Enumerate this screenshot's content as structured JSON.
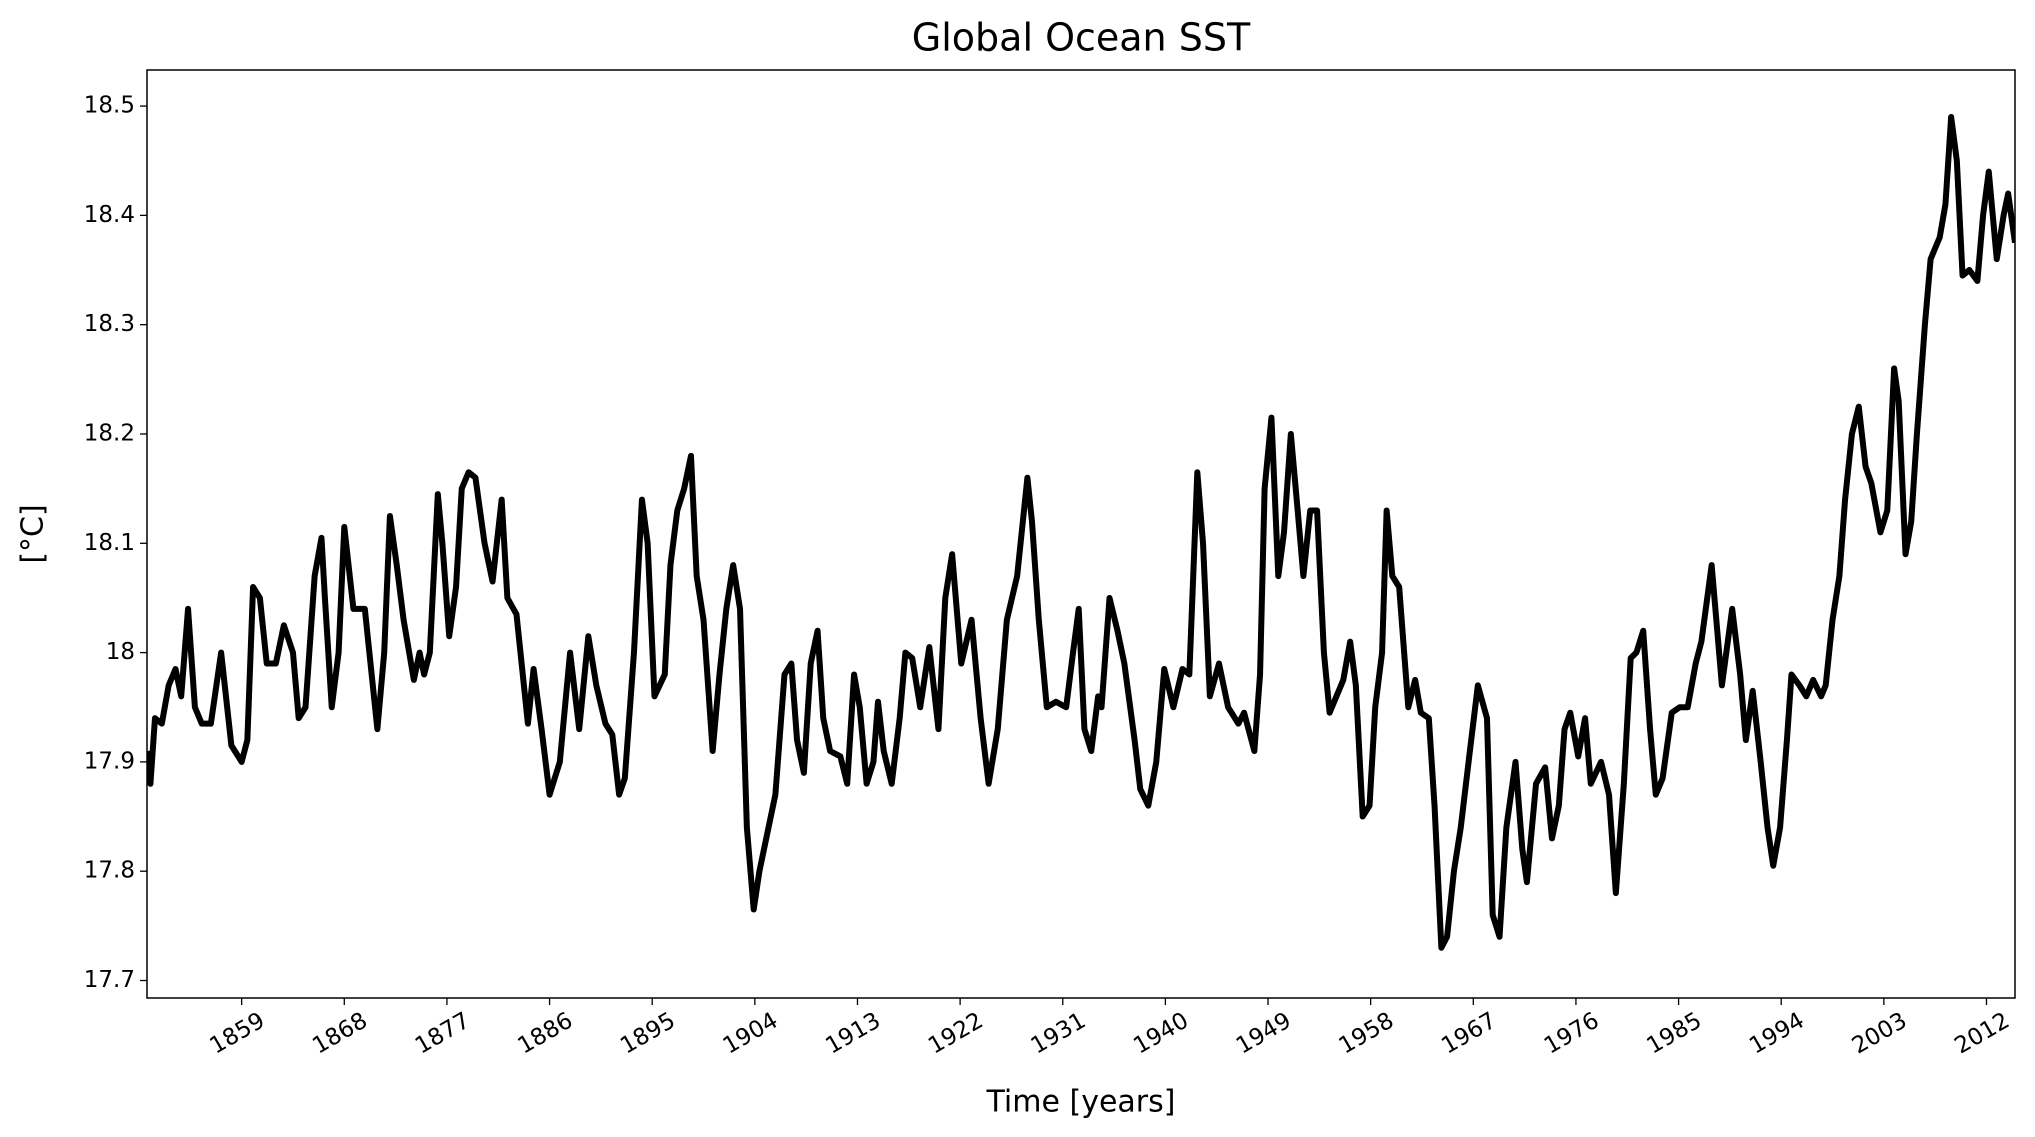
{
  "chart_data": {
    "type": "line",
    "title": "Global Ocean SST",
    "xlabel": "Time [years]",
    "ylabel": "[°C]",
    "color": "#000000",
    "x": [
      1850.7,
      1851.0,
      1851.4,
      1852.0,
      1852.6,
      1853.2,
      1853.7,
      1854.3,
      1854.9,
      1855.5,
      1856.3,
      1857.2,
      1858.1,
      1859.0,
      1859.5,
      1860.0,
      1860.6,
      1861.2,
      1862.0,
      1862.7,
      1863.5,
      1864.0,
      1864.6,
      1865.4,
      1866.0,
      1866.3,
      1866.9,
      1867.5,
      1868.0,
      1868.8,
      1869.8,
      1870.3,
      1870.9,
      1871.5,
      1872.0,
      1872.6,
      1873.2,
      1874.1,
      1874.6,
      1875.0,
      1875.5,
      1876.2,
      1876.6,
      1877.2,
      1877.8,
      1878.3,
      1878.9,
      1879.5,
      1880.3,
      1881.0,
      1881.8,
      1882.3,
      1883.1,
      1884.1,
      1884.6,
      1885.3,
      1886.0,
      1886.9,
      1887.8,
      1888.6,
      1889.4,
      1890.1,
      1890.9,
      1891.5,
      1892.1,
      1892.6,
      1893.4,
      1894.1,
      1894.6,
      1895.2,
      1896.1,
      1896.6,
      1897.2,
      1897.8,
      1898.4,
      1898.9,
      1899.5,
      1900.3,
      1900.9,
      1901.5,
      1902.1,
      1902.7,
      1903.3,
      1903.9,
      1904.4,
      1905.0,
      1905.8,
      1906.6,
      1907.2,
      1907.7,
      1908.3,
      1908.9,
      1909.5,
      1910.0,
      1910.6,
      1911.5,
      1912.1,
      1912.7,
      1913.2,
      1913.8,
      1914.4,
      1914.8,
      1915.3,
      1916.0,
      1916.7,
      1917.2,
      1917.8,
      1918.5,
      1919.3,
      1920.1,
      1920.7,
      1921.3,
      1922.1,
      1923.0,
      1923.8,
      1924.5,
      1925.3,
      1926.1,
      1927.0,
      1927.9,
      1928.3,
      1928.9,
      1929.6,
      1930.4,
      1931.3,
      1931.9,
      1932.4,
      1932.9,
      1933.5,
      1934.1,
      1934.4,
      1935.1,
      1935.8,
      1936.4,
      1937.3,
      1937.8,
      1938.5,
      1939.2,
      1939.9,
      1940.7,
      1941.5,
      1942.1,
      1942.8,
      1943.3,
      1943.9,
      1944.7,
      1945.5,
      1946.4,
      1946.9,
      1947.8,
      1948.3,
      1948.7,
      1949.3,
      1949.9,
      1950.4,
      1951.0,
      1951.6,
      1952.1,
      1952.7,
      1953.3,
      1953.9,
      1954.4,
      1955.0,
      1955.6,
      1956.2,
      1956.7,
      1957.3,
      1957.9,
      1958.4,
      1959.0,
      1959.4,
      1959.9,
      1960.5,
      1961.3,
      1961.9,
      1962.4,
      1963.1,
      1963.6,
      1964.2,
      1964.7,
      1965.3,
      1965.9,
      1966.7,
      1967.4,
      1968.2,
      1968.7,
      1969.3,
      1969.9,
      1970.7,
      1971.3,
      1971.7,
      1972.5,
      1973.3,
      1973.9,
      1974.5,
      1975.0,
      1975.5,
      1976.2,
      1976.8,
      1977.3,
      1978.2,
      1978.9,
      1979.5,
      1980.2,
      1980.8,
      1981.3,
      1981.9,
      1982.5,
      1983.0,
      1983.6,
      1984.4,
      1985.1,
      1985.8,
      1986.5,
      1987.0,
      1987.9,
      1988.8,
      1989.7,
      1990.4,
      1990.9,
      1991.5,
      1992.2,
      1992.8,
      1993.3,
      1993.9,
      1994.5,
      1994.9,
      1995.6,
      1996.2,
      1996.8,
      1997.5,
      1997.9,
      1998.5,
      1999.1,
      1999.6,
      2000.2,
      2000.8,
      2001.4,
      2001.9,
      2002.7,
      2003.3,
      2003.9,
      2004.3,
      2004.9,
      2005.4,
      2005.9,
      2006.6,
      2007.1,
      2007.9,
      2008.4,
      2008.9,
      2009.4,
      2009.9,
      2010.5,
      2011.2,
      2011.7,
      2012.2,
      2012.9,
      2013.5,
      2013.9,
      2014.5
    ],
    "values": [
      17.91,
      17.88,
      17.94,
      17.935,
      17.97,
      17.985,
      17.96,
      18.04,
      17.95,
      17.935,
      17.935,
      18.0,
      17.915,
      17.9,
      17.92,
      18.06,
      18.05,
      17.99,
      17.99,
      18.025,
      18.0,
      17.94,
      17.95,
      18.07,
      18.105,
      18.05,
      17.95,
      18.0,
      18.115,
      18.04,
      18.04,
      17.99,
      17.93,
      18.0,
      18.125,
      18.08,
      18.03,
      17.975,
      18.0,
      17.98,
      18.0,
      18.145,
      18.1,
      18.015,
      18.06,
      18.15,
      18.165,
      18.16,
      18.1,
      18.065,
      18.14,
      18.05,
      18.035,
      17.935,
      17.985,
      17.93,
      17.87,
      17.9,
      18.0,
      17.93,
      18.015,
      17.97,
      17.935,
      17.925,
      17.87,
      17.885,
      18.0,
      18.14,
      18.1,
      17.96,
      17.98,
      18.08,
      18.13,
      18.15,
      18.18,
      18.07,
      18.03,
      17.91,
      17.98,
      18.04,
      18.08,
      18.04,
      17.84,
      17.765,
      17.8,
      17.83,
      17.87,
      17.98,
      17.99,
      17.92,
      17.89,
      17.99,
      18.02,
      17.94,
      17.91,
      17.905,
      17.88,
      17.98,
      17.95,
      17.88,
      17.9,
      17.955,
      17.91,
      17.88,
      17.94,
      18.0,
      17.995,
      17.95,
      18.005,
      17.93,
      18.05,
      18.09,
      17.99,
      18.03,
      17.94,
      17.88,
      17.93,
      18.03,
      18.07,
      18.16,
      18.12,
      18.03,
      17.95,
      17.955,
      17.95,
      18.0,
      18.04,
      17.93,
      17.91,
      17.96,
      17.95,
      18.05,
      18.02,
      17.99,
      17.92,
      17.875,
      17.86,
      17.9,
      17.985,
      17.95,
      17.985,
      17.98,
      18.165,
      18.1,
      17.96,
      17.99,
      17.95,
      17.935,
      17.945,
      17.91,
      17.98,
      18.15,
      18.215,
      18.07,
      18.11,
      18.2,
      18.13,
      18.07,
      18.13,
      18.13,
      18.0,
      17.945,
      17.96,
      17.975,
      18.01,
      17.97,
      17.85,
      17.86,
      17.95,
      18.0,
      18.13,
      18.07,
      18.06,
      17.95,
      17.975,
      17.945,
      17.94,
      17.86,
      17.73,
      17.74,
      17.8,
      17.84,
      17.91,
      17.97,
      17.94,
      17.76,
      17.74,
      17.84,
      17.9,
      17.82,
      17.79,
      17.88,
      17.895,
      17.83,
      17.86,
      17.93,
      17.945,
      17.905,
      17.94,
      17.88,
      17.9,
      17.87,
      17.78,
      17.88,
      17.995,
      18.0,
      18.02,
      17.93,
      17.87,
      17.885,
      17.945,
      17.95,
      17.95,
      17.99,
      18.01,
      18.08,
      17.97,
      18.04,
      17.98,
      17.92,
      17.965,
      17.9,
      17.84,
      17.805,
      17.84,
      17.92,
      17.98,
      17.97,
      17.96,
      17.975,
      17.96,
      17.97,
      18.03,
      18.07,
      18.14,
      18.2,
      18.225,
      18.17,
      18.155,
      18.11,
      18.13,
      18.26,
      18.23,
      18.09,
      18.12,
      18.2,
      18.3,
      18.36,
      18.38,
      18.41,
      18.49,
      18.45,
      18.345,
      18.35,
      18.34,
      18.4,
      18.44,
      18.36,
      18.4,
      18.42,
      18.375
    ],
    "xlim": [
      1850.7,
      2014.5
    ],
    "xticks": [
      1859,
      1868,
      1877,
      1886,
      1895,
      1904,
      1913,
      1922,
      1931,
      1940,
      1949,
      1958,
      1967,
      1976,
      1985,
      1994,
      2003,
      2012
    ],
    "ylim": [
      17.684,
      18.533
    ],
    "yticks": [
      17.7,
      17.8,
      17.9,
      18.0,
      18.1,
      18.2,
      18.3,
      18.4,
      18.5
    ],
    "grid": false
  }
}
